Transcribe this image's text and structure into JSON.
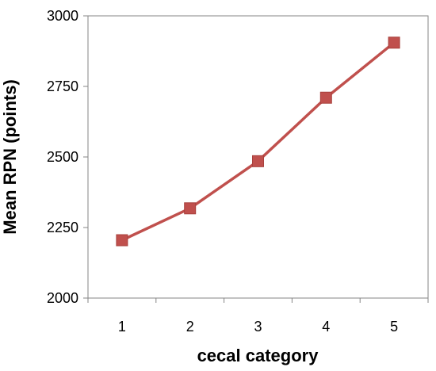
{
  "chart_data": {
    "type": "line",
    "x": [
      1,
      2,
      3,
      4,
      5
    ],
    "series": [
      {
        "values": [
          2205,
          2318,
          2485,
          2710,
          2905
        ],
        "color": "#C0504D",
        "marker": "square"
      }
    ],
    "xlabel": "cecal category",
    "ylabel": "Mean RPN (points)",
    "ylim": [
      2000,
      3000
    ],
    "yticks": [
      2000,
      2250,
      2500,
      2750,
      3000
    ],
    "xticks": [
      1,
      2,
      3,
      4,
      5
    ],
    "grid": false,
    "legend": "none"
  }
}
